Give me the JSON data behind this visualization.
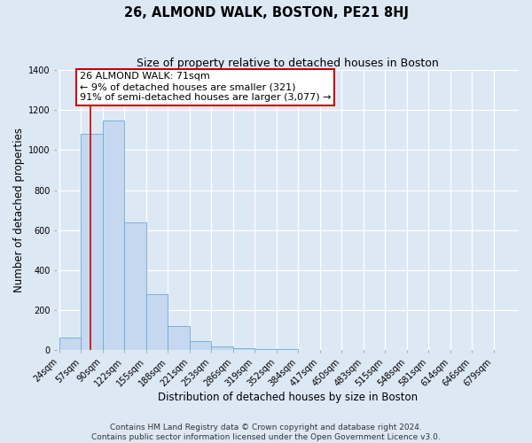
{
  "title": "26, ALMOND WALK, BOSTON, PE21 8HJ",
  "subtitle": "Size of property relative to detached houses in Boston",
  "xlabel": "Distribution of detached houses by size in Boston",
  "ylabel": "Number of detached properties",
  "bar_labels": [
    "24sqm",
    "57sqm",
    "90sqm",
    "122sqm",
    "155sqm",
    "188sqm",
    "221sqm",
    "253sqm",
    "286sqm",
    "319sqm",
    "352sqm",
    "384sqm",
    "417sqm",
    "450sqm",
    "483sqm",
    "515sqm",
    "548sqm",
    "581sqm",
    "614sqm",
    "646sqm",
    "679sqm"
  ],
  "bar_heights": [
    65,
    1080,
    1150,
    640,
    280,
    120,
    47,
    20,
    10,
    5,
    5,
    0,
    0,
    0,
    0,
    0,
    0,
    0,
    0,
    0,
    0
  ],
  "bar_color": "#c5d8f0",
  "bar_edgecolor": "#6aaad4",
  "vline_x": 71,
  "vline_color": "#cc0000",
  "annotation_text": "26 ALMOND WALK: 71sqm\n← 9% of detached houses are smaller (321)\n91% of semi-detached houses are larger (3,077) →",
  "annotation_box_facecolor": "#ffffff",
  "annotation_box_edgecolor": "#cc0000",
  "ylim": [
    0,
    1400
  ],
  "yticks": [
    0,
    200,
    400,
    600,
    800,
    1000,
    1200,
    1400
  ],
  "footer1": "Contains HM Land Registry data © Crown copyright and database right 2024.",
  "footer2": "Contains public sector information licensed under the Open Government Licence v3.0.",
  "fig_facecolor": "#dde8f5",
  "plot_facecolor": "#dde8f5",
  "grid_color": "#ffffff",
  "title_fontsize": 10.5,
  "subtitle_fontsize": 9,
  "axis_label_fontsize": 8.5,
  "tick_fontsize": 7,
  "annotation_fontsize": 8,
  "footer_fontsize": 6.5
}
